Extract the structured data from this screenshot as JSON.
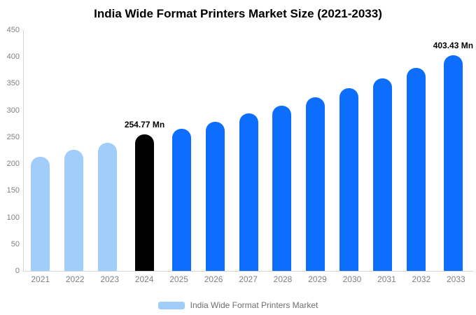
{
  "title": "India Wide Format Printers Market Size (2021-2033)",
  "legend": {
    "label": "India Wide Format Printers Market",
    "swatch_color": "#a1cdfa"
  },
  "colors": {
    "light_blue": "#a1cdfa",
    "blue": "#0d6efd",
    "black": "#000000",
    "axis_text": "#808080",
    "axis_line": "#d6d6d6"
  },
  "chart_data": {
    "type": "bar",
    "title": "India Wide Format Printers Market Size (2021-2033)",
    "categories": [
      "2021",
      "2022",
      "2023",
      "2024",
      "2025",
      "2026",
      "2027",
      "2028",
      "2029",
      "2030",
      "2031",
      "2032",
      "2033"
    ],
    "values": [
      213,
      226,
      240,
      254.77,
      266,
      279,
      294,
      309,
      325,
      342,
      360,
      380,
      403.43
    ],
    "bar_colors": [
      "#a1cdfa",
      "#a1cdfa",
      "#a1cdfa",
      "#000000",
      "#0d6efd",
      "#0d6efd",
      "#0d6efd",
      "#0d6efd",
      "#0d6efd",
      "#0d6efd",
      "#0d6efd",
      "#0d6efd",
      "#0d6efd"
    ],
    "data_labels": [
      {
        "index": 3,
        "text": "254.77 Mn"
      },
      {
        "index": 12,
        "text": "403.43 Mn"
      }
    ],
    "xlabel": "",
    "ylabel": "",
    "ylim": [
      0,
      450
    ],
    "yticks": [
      0,
      50,
      100,
      150,
      200,
      250,
      300,
      350,
      400,
      450
    ],
    "grid": false,
    "legend_position": "bottom"
  }
}
